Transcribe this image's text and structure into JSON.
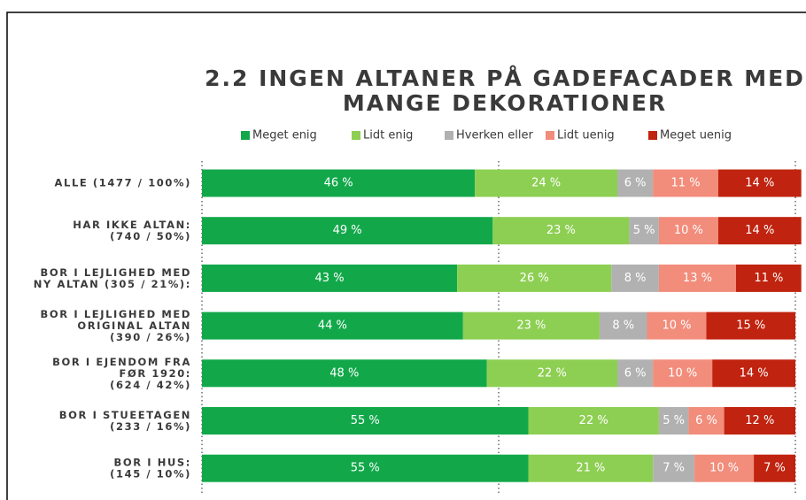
{
  "chart_data": {
    "type": "stacked-bar-horizontal",
    "title": "2.2 INGEN ALTANER PÅ GADEFACADER MED\nMANGE DEKORATIONER",
    "categories": [
      "ALLE (1477 / 100%)",
      "HAR IKKE ALTAN:\n(740 / 50%)",
      "BOR I LEJLIGHED MED\nNY ALTAN (305 / 21%):",
      "BOR I LEJLIGHED MED\nORIGINAL ALTAN\n(390 / 26%)",
      "BOR I EJENDOM FRA\nFØR 1920:\n(624 / 42%)",
      "BOR I STUEETAGEN\n(233 / 16%)",
      "BOR I HUS:\n(145 / 10%)"
    ],
    "series": [
      {
        "name": "Meget enig",
        "color": "#12a84a",
        "values": [
          46,
          49,
          43,
          44,
          48,
          55,
          55
        ],
        "value_labels": [
          "46 %",
          "49 %",
          "43 %",
          "44 %",
          "48 %",
          "55 %",
          "55 %"
        ]
      },
      {
        "name": "Lidt enig",
        "color": "#8dcf52",
        "values": [
          24,
          23,
          26,
          23,
          22,
          22,
          21
        ],
        "value_labels": [
          "24 %",
          "23 %",
          "26 %",
          "23 %",
          "22 %",
          "22 %",
          "21 %"
        ]
      },
      {
        "name": "Hverken eller",
        "color": "#b1b1b1",
        "values": [
          6,
          5,
          8,
          8,
          6,
          5,
          7
        ],
        "value_labels": [
          "6 %",
          "5 %",
          "8 %",
          "8 %",
          "6 %",
          "5 %",
          "7 %"
        ]
      },
      {
        "name": "Lidt uenig",
        "color": "#f28c7b",
        "values": [
          11,
          10,
          13,
          10,
          10,
          6,
          10
        ],
        "value_labels": [
          "11 %",
          "10 %",
          "13 %",
          "10 %",
          "10 %",
          "6 %",
          "10 %"
        ]
      },
      {
        "name": "Meget uenig",
        "color": "#c0230f",
        "values": [
          14,
          14,
          11,
          15,
          14,
          12,
          7
        ],
        "value_labels": [
          "14 %",
          "14 %",
          "11 %",
          "15 %",
          "14 %",
          "12 %",
          "7 %"
        ]
      }
    ],
    "xlim": [
      0,
      100
    ],
    "xticks": [
      0,
      50,
      100
    ],
    "grid": true
  }
}
